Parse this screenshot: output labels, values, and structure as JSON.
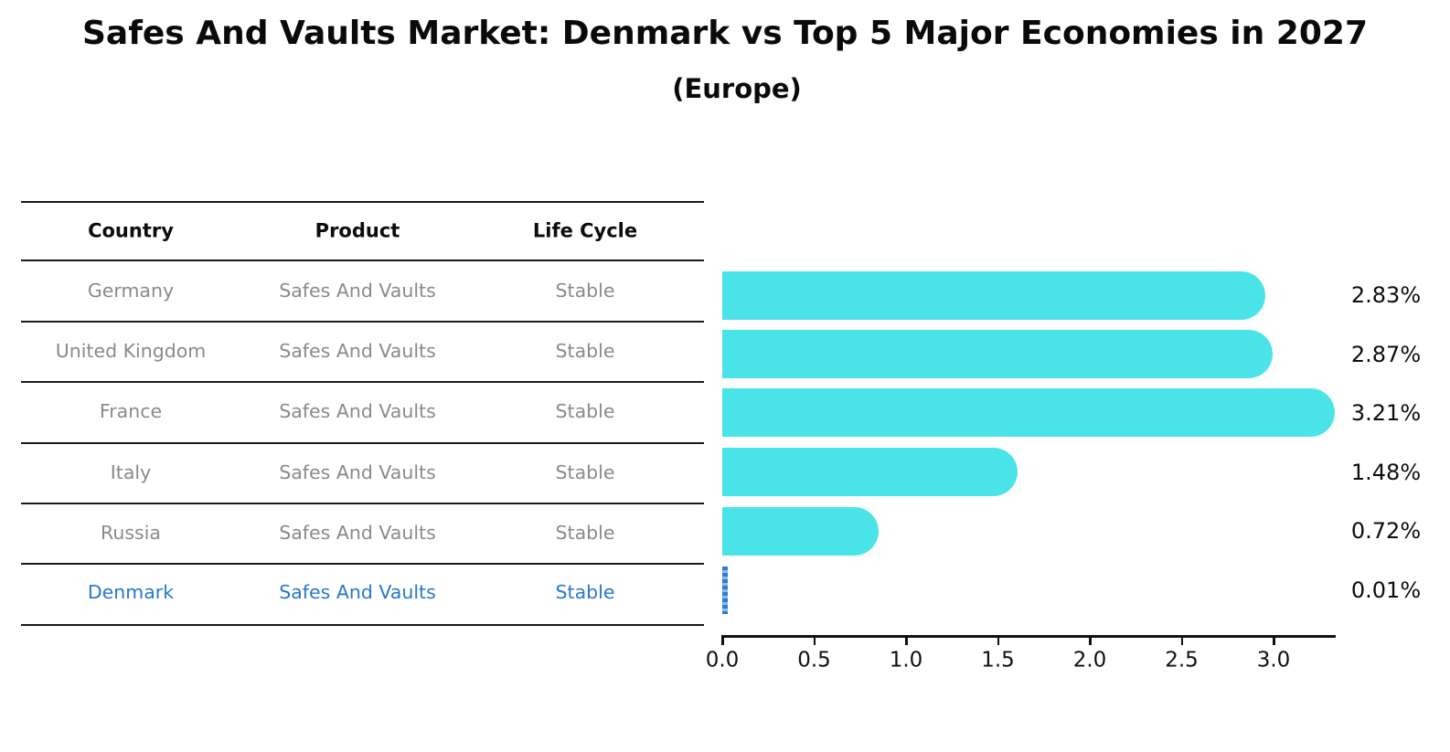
{
  "chart_data": {
    "type": "bar",
    "orientation": "horizontal",
    "title": "Safes And Vaults Market: Denmark vs Top 5 Major Economies in 2027",
    "subtitle": "(Europe)",
    "categories": [
      "Germany",
      "United Kingdom",
      "France",
      "Italy",
      "Russia",
      "Denmark"
    ],
    "values": [
      2.83,
      2.87,
      3.21,
      1.48,
      0.72,
      0.01
    ],
    "value_labels": [
      "2.83%",
      "2.87%",
      "3.21%",
      "1.48%",
      "0.72%",
      "0.01%"
    ],
    "x_tick_labels": [
      "0.0",
      "0.5",
      "1.0",
      "1.5",
      "2.0",
      "2.5",
      "3.0"
    ],
    "xlim": [
      0,
      3.35
    ],
    "grid": false,
    "legend": "none",
    "bar_color": "#4AE4E8",
    "highlight_index": 5,
    "highlight_bar_color": "#2E7DC9"
  },
  "table": {
    "headers": [
      "Country",
      "Product",
      "Life Cycle"
    ],
    "rows": [
      {
        "country": "Germany",
        "product": "Safes And Vaults",
        "life_cycle": "Stable",
        "highlighted": false
      },
      {
        "country": "United Kingdom",
        "product": "Safes And Vaults",
        "life_cycle": "Stable",
        "highlighted": false
      },
      {
        "country": "France",
        "product": "Safes And Vaults",
        "life_cycle": "Stable",
        "highlighted": false
      },
      {
        "country": "Italy",
        "product": "Safes And Vaults",
        "life_cycle": "Stable",
        "highlighted": false
      },
      {
        "country": "Russia",
        "product": "Safes And Vaults",
        "life_cycle": "Stable",
        "highlighted": false
      },
      {
        "country": "Denmark",
        "product": "Safes And Vaults",
        "life_cycle": "Stable",
        "highlighted": true
      }
    ]
  },
  "colors": {
    "row_text": "#8a8a8a",
    "highlight_text": "#2878CB",
    "header_text": "#0d0d0d",
    "line": "#1a1a1a",
    "bar": "#4AE4E8",
    "denmark_bar": "#2E7DC9"
  }
}
